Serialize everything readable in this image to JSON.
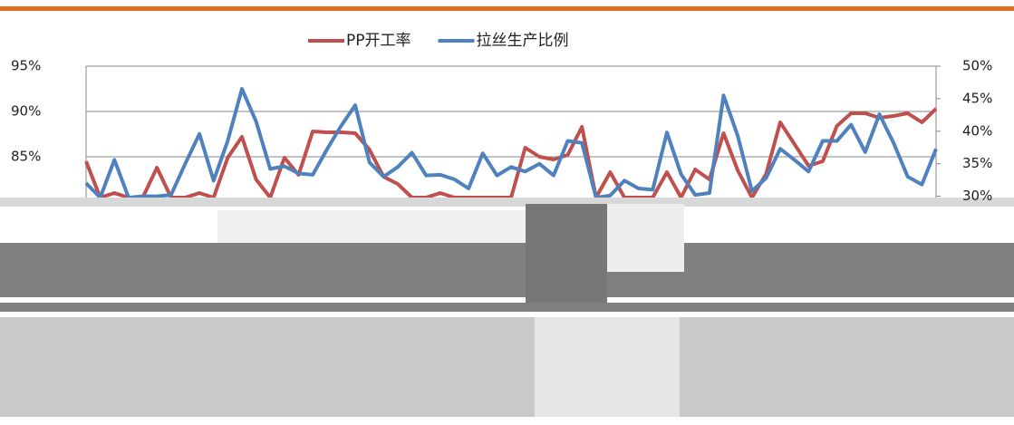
{
  "chart_data": {
    "type": "line",
    "series": [
      {
        "name": "PP开工率",
        "color": "#c0504d",
        "values": [
          84.5,
          80.5,
          81,
          80.5,
          80.5,
          83.8,
          80.5,
          80.5,
          81,
          80.5,
          84.9,
          87.2,
          82.5,
          80.5,
          84.9,
          83,
          87.8,
          87.7,
          87.7,
          87.6,
          85.8,
          82.8,
          82,
          80.5,
          80.5,
          81,
          80.5,
          80.5,
          80.5,
          80.5,
          80.5,
          86,
          85,
          84.7,
          85.2,
          88.3,
          80.5,
          83.3,
          80.5,
          80.5,
          80.5,
          83.3,
          80.5,
          83.6,
          82.5,
          87.6,
          83.5,
          80.5,
          83.1,
          88.8,
          86.4,
          84,
          84.5,
          88.4,
          89.8,
          89.8,
          89.3,
          89.5,
          89.8,
          88.8,
          90.3
        ]
      },
      {
        "name": "拉丝生产比例",
        "color": "#4f81bd",
        "axis": "y2",
        "values": [
          32,
          29.8,
          35.6,
          29.8,
          30,
          30,
          30.2,
          35,
          39.6,
          32.4,
          38.5,
          46.5,
          41.5,
          34.2,
          34.6,
          33.5,
          33.3,
          37.2,
          40.8,
          44,
          35.2,
          33,
          34.5,
          36.7,
          33.2,
          33.3,
          32.6,
          31.2,
          36.6,
          33.2,
          34.5,
          33.8,
          35,
          33.2,
          38.5,
          38.2,
          29.8,
          30.1,
          32.4,
          31.2,
          31,
          39.8,
          33.4,
          30.2,
          30.5,
          45.5,
          39.3,
          30.8,
          32.8,
          37.3,
          35.6,
          33.8,
          38.5,
          38.5,
          41,
          36.8,
          42.6,
          38.2,
          33,
          31.8,
          37.3
        ]
      }
    ],
    "ylim": [
      80.5,
      95
    ],
    "yticks": [
      {
        "value": 85,
        "label": "85%"
      },
      {
        "value": 90,
        "label": "90%"
      },
      {
        "value": 95,
        "label": "95%"
      }
    ],
    "y2lim": [
      29.8,
      50
    ],
    "y2ticks": [
      {
        "value": 30,
        "label": "30%"
      },
      {
        "value": 35,
        "label": "35%"
      },
      {
        "value": 40,
        "label": "40%"
      },
      {
        "value": 45,
        "label": "45%"
      },
      {
        "value": 50,
        "label": "50%"
      }
    ],
    "grid": true
  }
}
